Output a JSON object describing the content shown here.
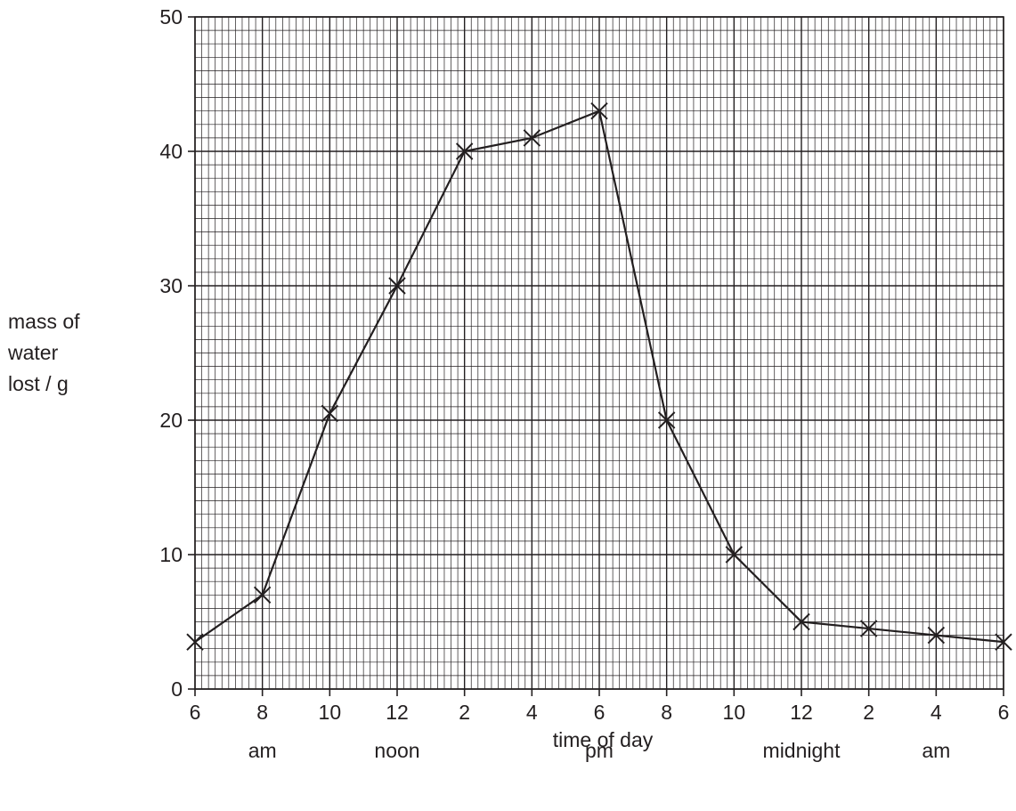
{
  "chart_data": {
    "type": "line",
    "xlabel": "time of day",
    "ylabel": [
      "mass of",
      "water",
      "lost / g"
    ],
    "ylim": [
      0,
      50
    ],
    "yticks": [
      0,
      10,
      20,
      30,
      40,
      50
    ],
    "xlim": [
      0,
      24
    ],
    "xtick_labels": [
      "6",
      "8",
      "10",
      "12",
      "2",
      "4",
      "6",
      "8",
      "10",
      "12",
      "2",
      "4",
      "6"
    ],
    "x_period_labels": [
      {
        "x": 2,
        "text": "am"
      },
      {
        "x": 6,
        "text": "noon"
      },
      {
        "x": 12,
        "text": "pm"
      },
      {
        "x": 18,
        "text": "midnight"
      },
      {
        "x": 22,
        "text": "am"
      }
    ],
    "grid": true,
    "marker": "x",
    "series": [
      {
        "x": [
          0,
          2,
          4,
          6,
          8,
          10,
          12,
          14,
          16,
          18,
          20,
          22,
          24
        ],
        "values": [
          3.5,
          7,
          20.5,
          30,
          40,
          41,
          43,
          20,
          10,
          5,
          4.5,
          4,
          3.5
        ]
      }
    ]
  }
}
